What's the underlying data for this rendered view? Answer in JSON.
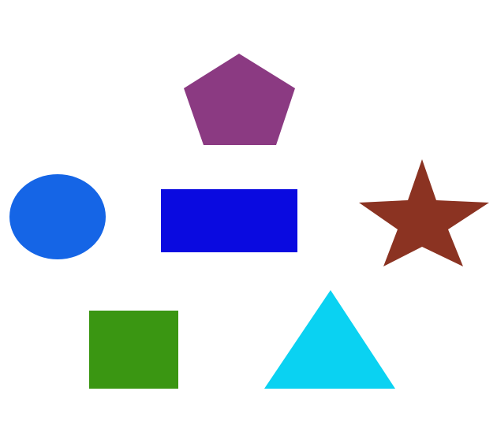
{
  "background_color": "#ffffff",
  "shapes": [
    {
      "id": "pentagon",
      "kind": "pentagon",
      "color": "#8b3a82"
    },
    {
      "id": "circle",
      "kind": "circle",
      "color": "#1565e6"
    },
    {
      "id": "rectangle",
      "kind": "rectangle",
      "color": "#0a0ae0"
    },
    {
      "id": "star",
      "kind": "star",
      "color": "#8b3322"
    },
    {
      "id": "square",
      "kind": "square",
      "color": "#3a9612"
    },
    {
      "id": "triangle",
      "kind": "triangle",
      "color": "#0ad2f2"
    }
  ]
}
